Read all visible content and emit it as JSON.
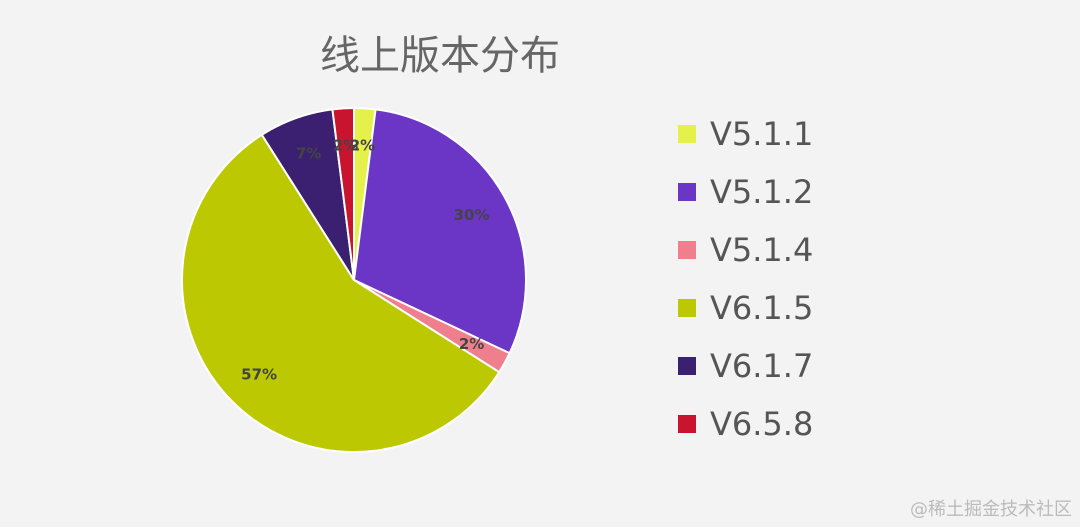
{
  "chart_data": {
    "type": "pie",
    "title": "线上版本分布",
    "categories": [
      "V5.1.1",
      "V5.1.2",
      "V5.1.4",
      "V6.1.5",
      "V6.1.7",
      "V6.5.8"
    ],
    "values": [
      2,
      30,
      2,
      57,
      7,
      2
    ],
    "value_labels": [
      "2%",
      "30%",
      "2%",
      "57%",
      "7%",
      "2%"
    ],
    "colors": [
      "#e6f04a",
      "#6b36c6",
      "#f07f8e",
      "#bcc802",
      "#3b1f70",
      "#c8142e"
    ],
    "legend": "right"
  },
  "watermark": "@稀土掘金技术社区"
}
